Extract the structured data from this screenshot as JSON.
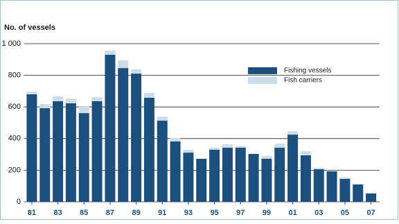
{
  "chart_data": {
    "type": "stacked-bar",
    "title": "No. of vessels",
    "categories": [
      "81",
      null,
      "83",
      null,
      "85",
      null,
      "87",
      null,
      "89",
      null,
      "91",
      null,
      "93",
      null,
      "95",
      null,
      "97",
      null,
      "99",
      null,
      "01",
      null,
      "03",
      null,
      "05",
      null,
      "07"
    ],
    "series": [
      {
        "name": "Fishing vessels",
        "color": "#1d4f7c",
        "values": [
          680,
          592,
          636,
          623,
          561,
          636,
          930,
          846,
          811,
          658,
          513,
          382,
          311,
          272,
          329,
          342,
          342,
          303,
          272,
          342,
          425,
          294,
          206,
          193,
          145,
          110,
          53
        ]
      },
      {
        "name": "Fish carriers",
        "color": "#cddde8",
        "values": [
          17,
          26,
          31,
          30,
          40,
          26,
          26,
          49,
          27,
          31,
          26,
          22,
          18,
          0,
          13,
          22,
          9,
          0,
          17,
          26,
          22,
          26,
          9,
          0,
          9,
          0,
          0
        ]
      }
    ],
    "ylim": [
      0,
      1000
    ],
    "yticks": [
      0,
      200,
      400,
      600,
      800,
      {
        "value": 1000,
        "label": "1 000"
      }
    ],
    "grid": true
  }
}
